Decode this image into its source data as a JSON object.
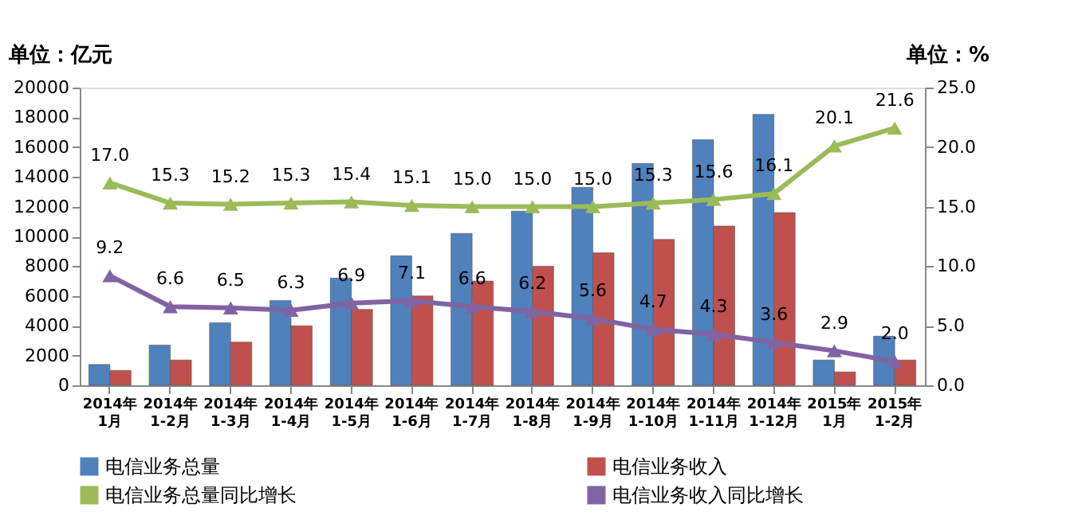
{
  "chart_data": {
    "type": "bar",
    "ylabel": "单位：亿元",
    "y2label": "单位：%",
    "categories": [
      "2014年\n1月",
      "2014年\n1-2月",
      "2014年\n1-3月",
      "2014年\n1-4月",
      "2014年\n1-5月",
      "2014年\n1-6月",
      "2014年\n1-7月",
      "2014年\n1-8月",
      "2014年\n1-9月",
      "2014年\n1-10月",
      "2014年\n1-11月",
      "2014年\n1-12月",
      "2015年\n1月",
      "2015年\n1-2月"
    ],
    "series": [
      {
        "name": "电信业务总量",
        "color": "#4f81bd",
        "values": [
          1400,
          2700,
          4200,
          5700,
          7200,
          8700,
          10200,
          11700,
          13300,
          14900,
          16500,
          18200,
          1700,
          3300
        ]
      },
      {
        "name": "电信业务收入",
        "color": "#c0504d",
        "values": [
          1000,
          1700,
          2900,
          4000,
          5100,
          6000,
          7000,
          8000,
          8900,
          9800,
          10700,
          11600,
          900,
          1700
        ]
      },
      {
        "name": "电信业务总量同比增长",
        "color": "#9bbb59",
        "type": "line",
        "axis": "y2",
        "marker": "triangle",
        "values": [
          17.0,
          15.3,
          15.2,
          15.3,
          15.4,
          15.1,
          15.0,
          15.0,
          15.0,
          15.3,
          15.6,
          16.1,
          20.1,
          21.6
        ],
        "value_labels": [
          "17.0",
          "15.3",
          "15.2",
          "15.3",
          "15.4",
          "15.1",
          "15.0",
          "15.0",
          "15.0",
          "15.3",
          "15.6",
          "16.1",
          "20.1",
          "21.6"
        ]
      },
      {
        "name": "电信业务收入同比增长",
        "color": "#8064a2",
        "type": "line",
        "axis": "y2",
        "marker": "triangle",
        "values": [
          9.2,
          6.6,
          6.5,
          6.3,
          6.9,
          7.1,
          6.6,
          6.2,
          5.6,
          4.7,
          4.3,
          3.6,
          2.9,
          2.0
        ],
        "value_labels": [
          "9.2",
          "6.6",
          "6.5",
          "6.3",
          "6.9",
          "7.1",
          "6.6",
          "6.2",
          "5.6",
          "4.7",
          "4.3",
          "3.6",
          "2.9",
          "2.0"
        ]
      }
    ],
    "ylim": [
      0,
      20000
    ],
    "yticks": [
      0,
      2000,
      4000,
      6000,
      8000,
      10000,
      12000,
      14000,
      16000,
      18000,
      20000
    ],
    "y2lim": [
      0,
      25
    ],
    "y2ticks": [
      {
        "value": 0,
        "label": "0.0"
      },
      {
        "value": 5,
        "label": "5.0"
      },
      {
        "value": 10,
        "label": "10.0"
      },
      {
        "value": 15,
        "label": "15.0"
      },
      {
        "value": 20,
        "label": "20.0"
      },
      {
        "value": 25,
        "label": "25.0"
      }
    ],
    "grid": false,
    "legend": "bottom"
  }
}
